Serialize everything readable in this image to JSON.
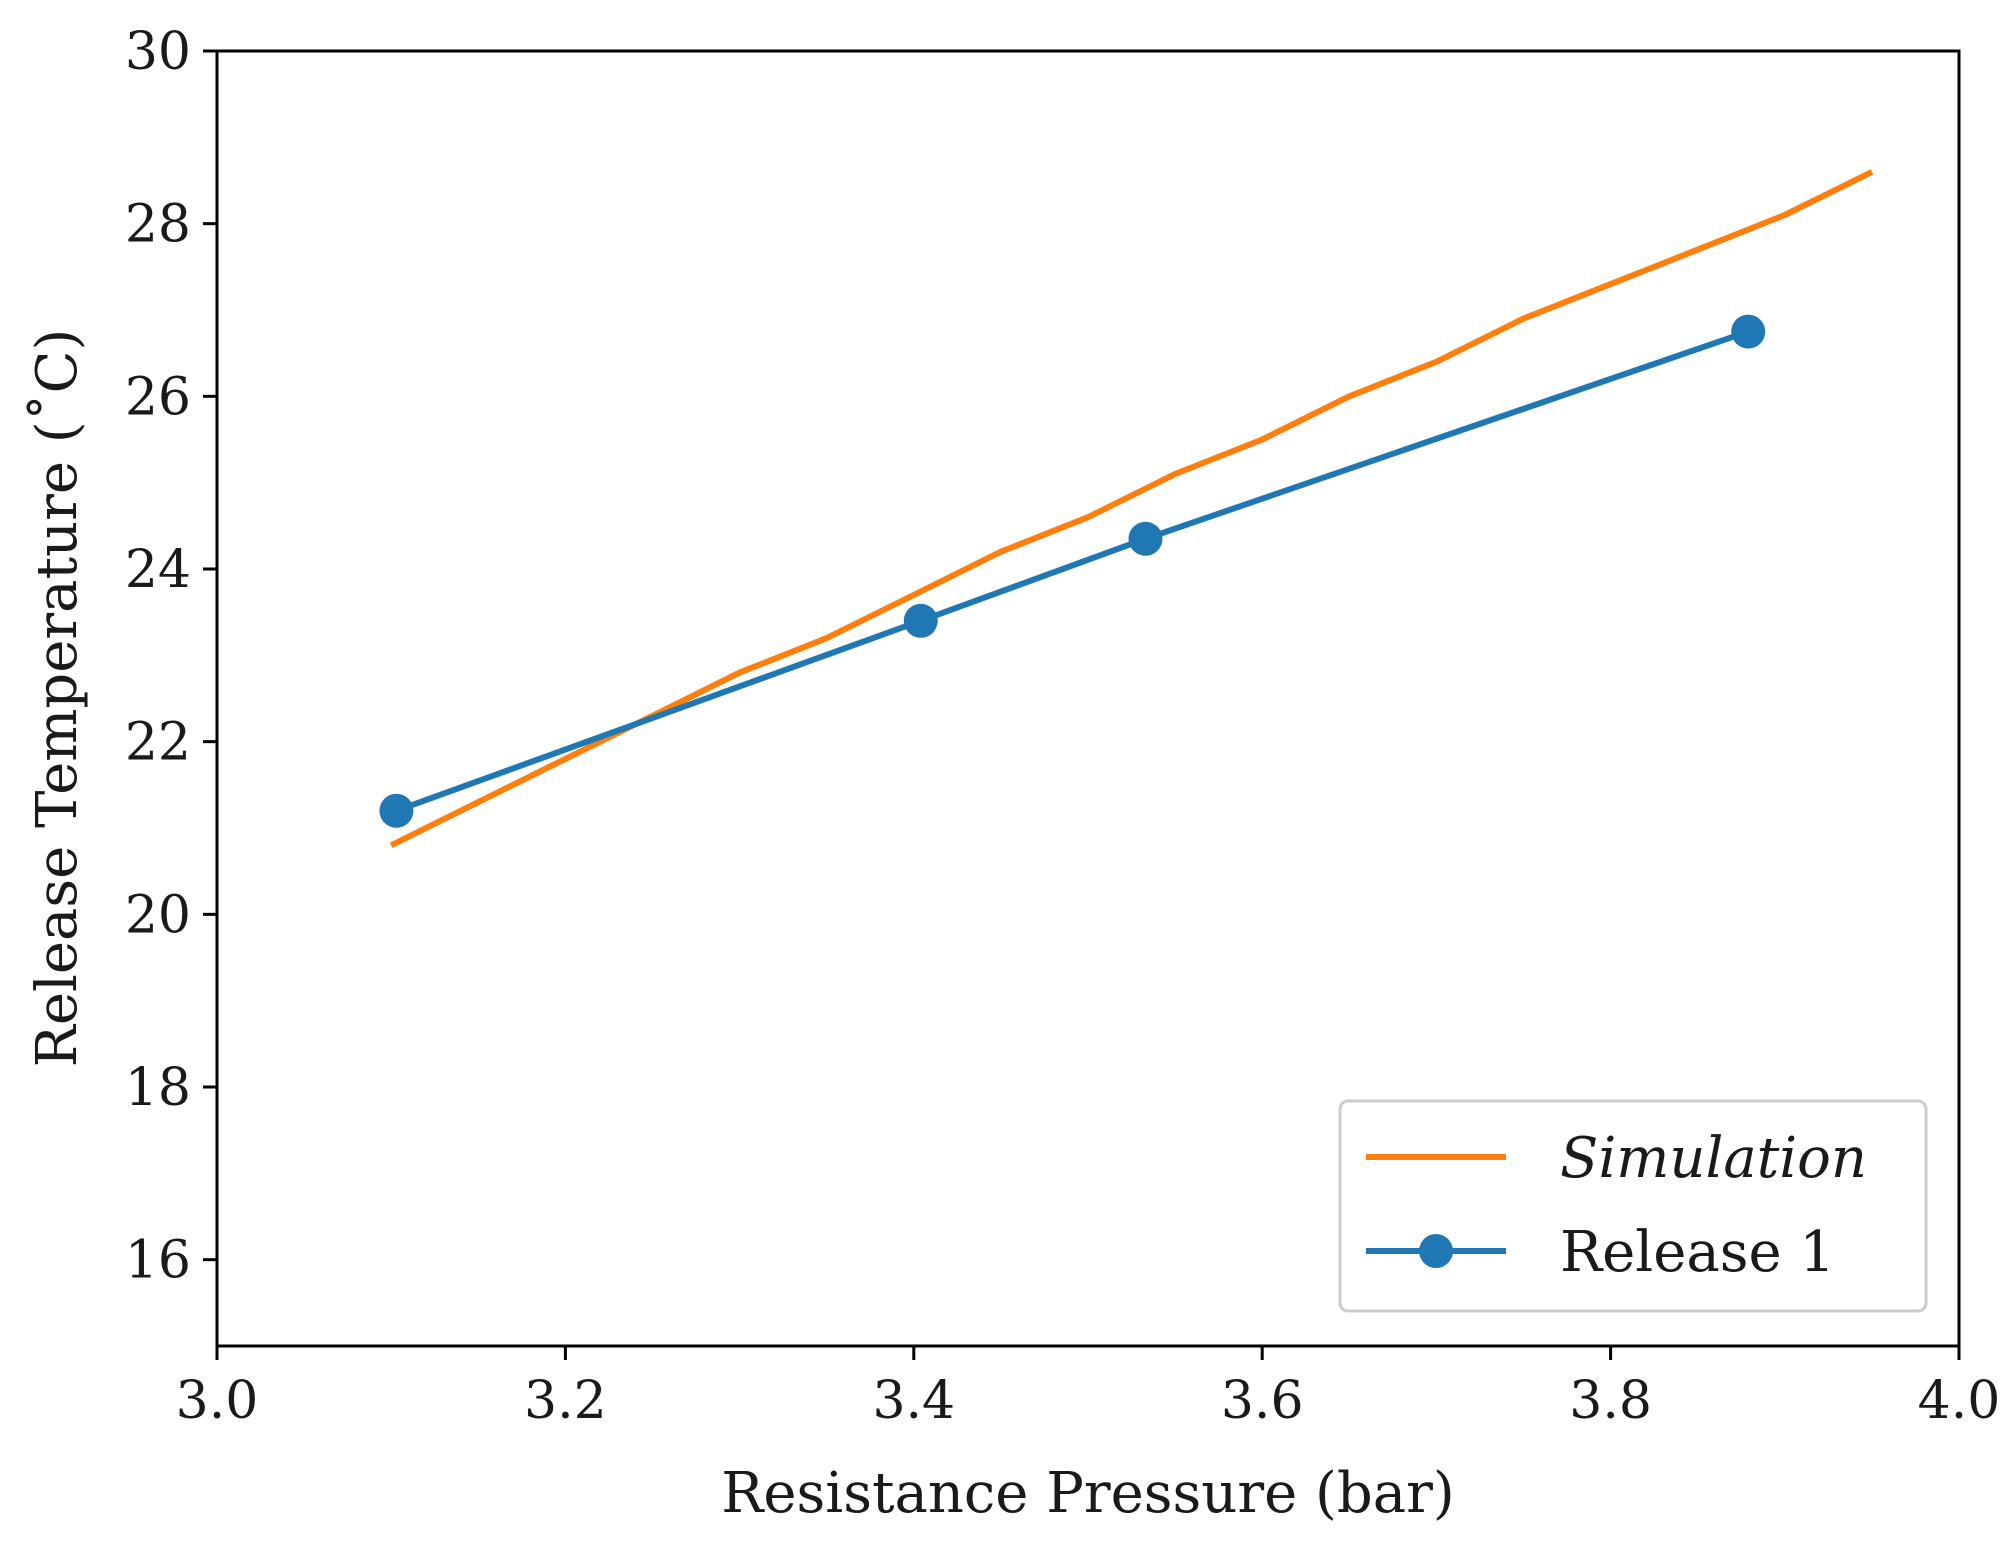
{
  "chart_data": {
    "type": "line",
    "title": "",
    "xlabel": "Resistance Pressure (bar)",
    "ylabel": "Release Temperature (˚C)",
    "xlim": [
      3.0,
      4.0
    ],
    "ylim": [
      15,
      30
    ],
    "xticks": [
      "3.0",
      "3.2",
      "3.4",
      "3.6",
      "3.8",
      "4.0"
    ],
    "yticks": [
      "16",
      "18",
      "20",
      "22",
      "24",
      "26",
      "28",
      "30"
    ],
    "grid": false,
    "legend_position": "lower-right",
    "series": [
      {
        "name": "Simulation",
        "color": "#ff7f0e",
        "marker": "none",
        "italic": true,
        "x": [
          3.1,
          3.15,
          3.2,
          3.25,
          3.3,
          3.35,
          3.4,
          3.45,
          3.5,
          3.55,
          3.6,
          3.65,
          3.7,
          3.75,
          3.8,
          3.85,
          3.9,
          3.95
        ],
        "y": [
          20.8,
          21.3,
          21.8,
          22.3,
          22.8,
          23.2,
          23.7,
          24.2,
          24.6,
          25.1,
          25.5,
          26.0,
          26.4,
          26.9,
          27.3,
          27.7,
          28.1,
          28.6
        ]
      },
      {
        "name": "Release 1",
        "color": "#1f77b4",
        "marker": "circle",
        "italic": false,
        "x": [
          3.103,
          3.404,
          3.533,
          3.879
        ],
        "y": [
          21.2,
          23.4,
          24.35,
          26.75
        ]
      }
    ]
  }
}
